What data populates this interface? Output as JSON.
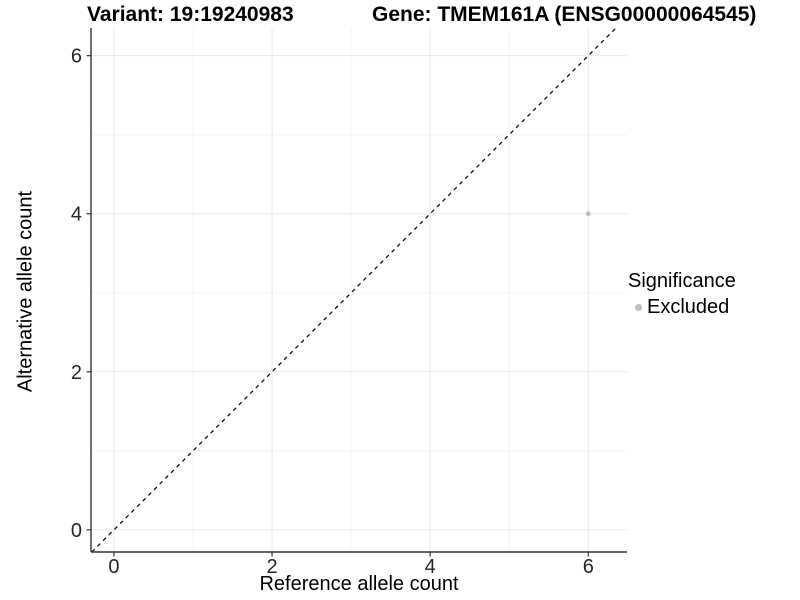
{
  "header": {
    "variant_title": "Variant: 19:19240983",
    "gene_title": "Gene: TMEM161A (ENSG00000064545)"
  },
  "legend": {
    "title": "Significance",
    "items": [
      {
        "label": "Excluded",
        "color": "#bdbdbd"
      }
    ]
  },
  "colors": {
    "background": "#ffffff",
    "point": "#bdbdbd",
    "grid_major": "#e7e7e7",
    "grid_minor": "#f4f4f4",
    "axis_line": "#333333",
    "tick_text": "#262626",
    "reference_line": "#000000"
  },
  "chart_data": {
    "type": "scatter",
    "title": "Variant: 19:19240983 | Gene: TMEM161A (ENSG00000064545)",
    "xlabel": "Reference allele count",
    "ylabel": "Alternative allele count",
    "xlim": [
      -0.29,
      6.49
    ],
    "ylim": [
      -0.28,
      6.35
    ],
    "xticks": [
      0,
      2,
      4,
      6
    ],
    "yticks": [
      0,
      2,
      4,
      6
    ],
    "xticks_minor": [
      1,
      3,
      5
    ],
    "yticks_minor": [
      1,
      3,
      5
    ],
    "grid": true,
    "legend_position": "right",
    "series": [
      {
        "name": "Excluded",
        "color": "#bdbdbd",
        "points": [
          {
            "x": 6,
            "y": 4
          }
        ]
      }
    ],
    "reference_line": {
      "slope": 1,
      "intercept": 0,
      "style": "dashed",
      "color": "#000000"
    }
  }
}
